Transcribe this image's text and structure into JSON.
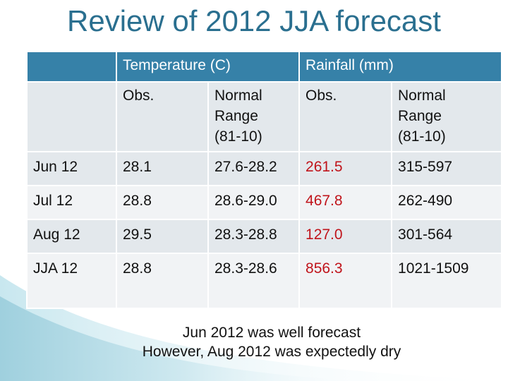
{
  "title": "Review of 2012 JJA forecast",
  "header": {
    "blank": "",
    "temperature": "Temperature (C)",
    "rainfall": "Rainfall (mm)"
  },
  "subheader": {
    "blank": "",
    "temp_obs": "Obs.",
    "temp_normal": [
      "Normal",
      "Range",
      "(81-10)"
    ],
    "rain_obs": "Obs.",
    "rain_normal": [
      "Normal",
      "Range",
      "(81-10)"
    ]
  },
  "rows": [
    {
      "period": "Jun 12",
      "temp_obs": "28.1",
      "temp_range": "27.6-28.2",
      "rain_obs": "261.5",
      "rain_range": "315-597"
    },
    {
      "period": "Jul 12",
      "temp_obs": "28.8",
      "temp_range": "28.6-29.0",
      "rain_obs": "467.8",
      "rain_range": "262-490"
    },
    {
      "period": "Aug 12",
      "temp_obs": "29.5",
      "temp_range": "28.3-28.8",
      "rain_obs": "127.0",
      "rain_range": "301-564"
    },
    {
      "period": "JJA 12",
      "temp_obs": "28.8",
      "temp_range": "28.3-28.6",
      "rain_obs": "856.3",
      "rain_range": "1021-1509"
    }
  ],
  "notes": [
    "Jun 2012 was well forecast",
    "However, Aug 2012 was expectedly dry"
  ],
  "colors": {
    "title": "#2a6f8f",
    "header_bg": "#3681a8",
    "row_even_bg": "#e3e8ec",
    "row_odd_bg": "#f1f3f5",
    "rainfall_highlight": "#c0141b"
  }
}
